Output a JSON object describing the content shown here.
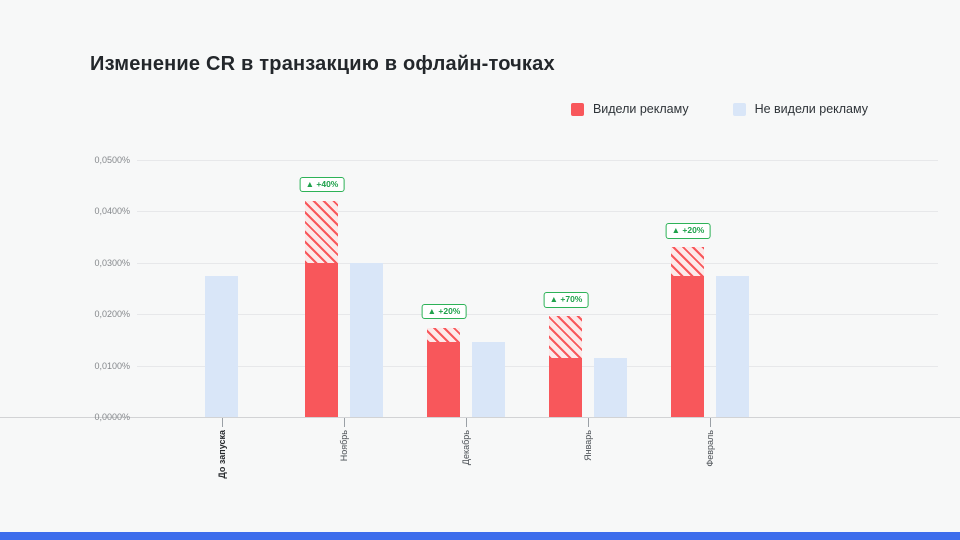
{
  "slide": {
    "title": "Изменение CR в транзакцию в офлайн-точках",
    "accent_bar_color": "#3D6DEC",
    "background_color": "#F7F8F8"
  },
  "legend": {
    "items": [
      {
        "label": "Видели рекламу",
        "color": "#F8575B"
      },
      {
        "label": "Не видели рекламу",
        "color": "#D9E6F8"
      }
    ]
  },
  "chart_data": {
    "type": "bar",
    "title": "Изменение CR в транзакцию в офлайн-точках",
    "categories": [
      "До запуска",
      "Ноябрь",
      "Декабрь",
      "Январь",
      "Февраль"
    ],
    "series": [
      {
        "name": "Видели рекламу",
        "color": "#F8575B",
        "values": [
          null,
          0.042,
          0.0174,
          0.0196,
          0.033
        ],
        "hatch_from_control_level": true
      },
      {
        "name": "Не видели рекламу",
        "color": "#D9E6F8",
        "values": [
          0.0275,
          0.03,
          0.0145,
          0.0115,
          0.0275
        ]
      }
    ],
    "uplift_badges": [
      null,
      "+40%",
      "+20%",
      "+70%",
      "+20%"
    ],
    "badge_arrow": "▲",
    "y_ticks": [
      "0,0500%",
      "0,0400%",
      "0,0300%",
      "0,0200%",
      "0,0100%",
      "0,0000%"
    ],
    "y_tick_values": [
      0.05,
      0.04,
      0.03,
      0.02,
      0.01,
      0.0
    ],
    "ylim": [
      0,
      0.05
    ],
    "grid": true,
    "legend_position": "top-right",
    "x_label_rotation": 90,
    "note": "hatched top segment of red bars = uplift above control (not-seen) level"
  }
}
